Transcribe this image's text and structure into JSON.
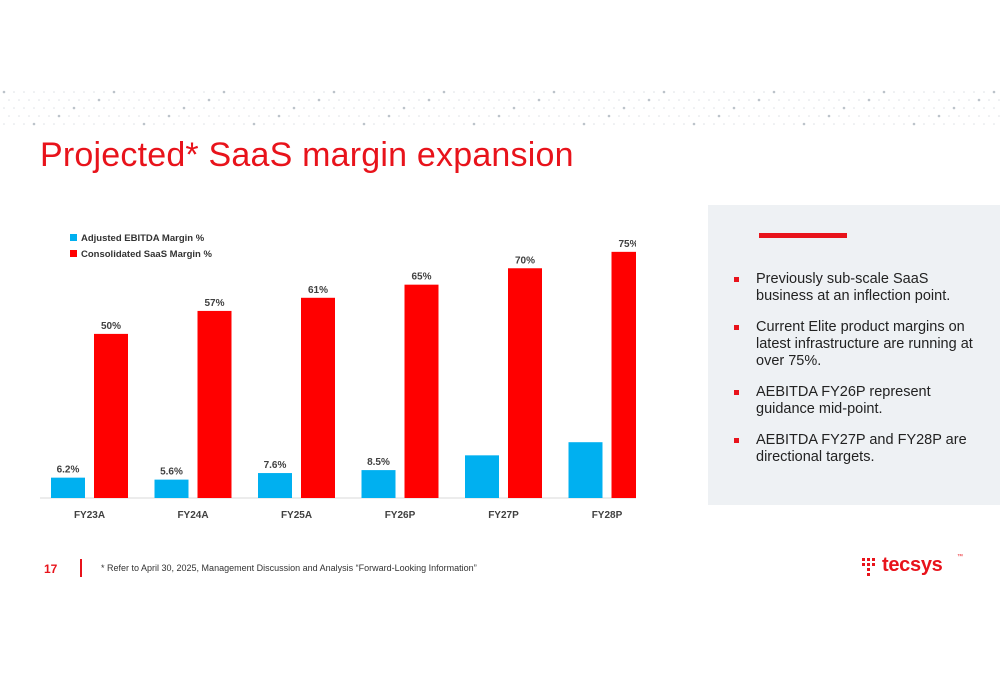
{
  "slide": {
    "title": "Projected* SaaS margin expansion",
    "page_number": "17",
    "footnote": "* Refer to April 30, 2025, Management Discussion and Analysis “Forward-Looking Information”"
  },
  "side_panel": {
    "bullets": [
      "Previously sub-scale SaaS business at an inflection point.",
      "Current Elite product margins on latest infrastructure are running at over 75%.",
      "AEBITDA FY26P represent guidance mid-point.",
      "AEBITDA FY27P and FY28P are directional targets."
    ]
  },
  "logo": {
    "text": "tecsys",
    "tm": "™"
  },
  "chart_data": {
    "type": "bar",
    "categories": [
      "FY23A",
      "FY24A",
      "FY25A",
      "FY26P",
      "FY27P",
      "FY28P"
    ],
    "series": [
      {
        "name": "Adjusted EBITDA Margin %",
        "color": "#00b0f0",
        "values": [
          6.2,
          5.6,
          7.6,
          8.5,
          13,
          17
        ],
        "labels": [
          "6.2%",
          "5.6%",
          "7.6%",
          "8.5%",
          "",
          ""
        ]
      },
      {
        "name": "Consolidated SaaS Margin %",
        "color": "#ff0000",
        "values": [
          50,
          57,
          61,
          65,
          70,
          75
        ],
        "labels": [
          "50%",
          "57%",
          "61%",
          "65%",
          "70%",
          "75%"
        ]
      }
    ],
    "ylim": [
      0,
      78
    ],
    "grid": false,
    "legend_position": "top-left"
  }
}
